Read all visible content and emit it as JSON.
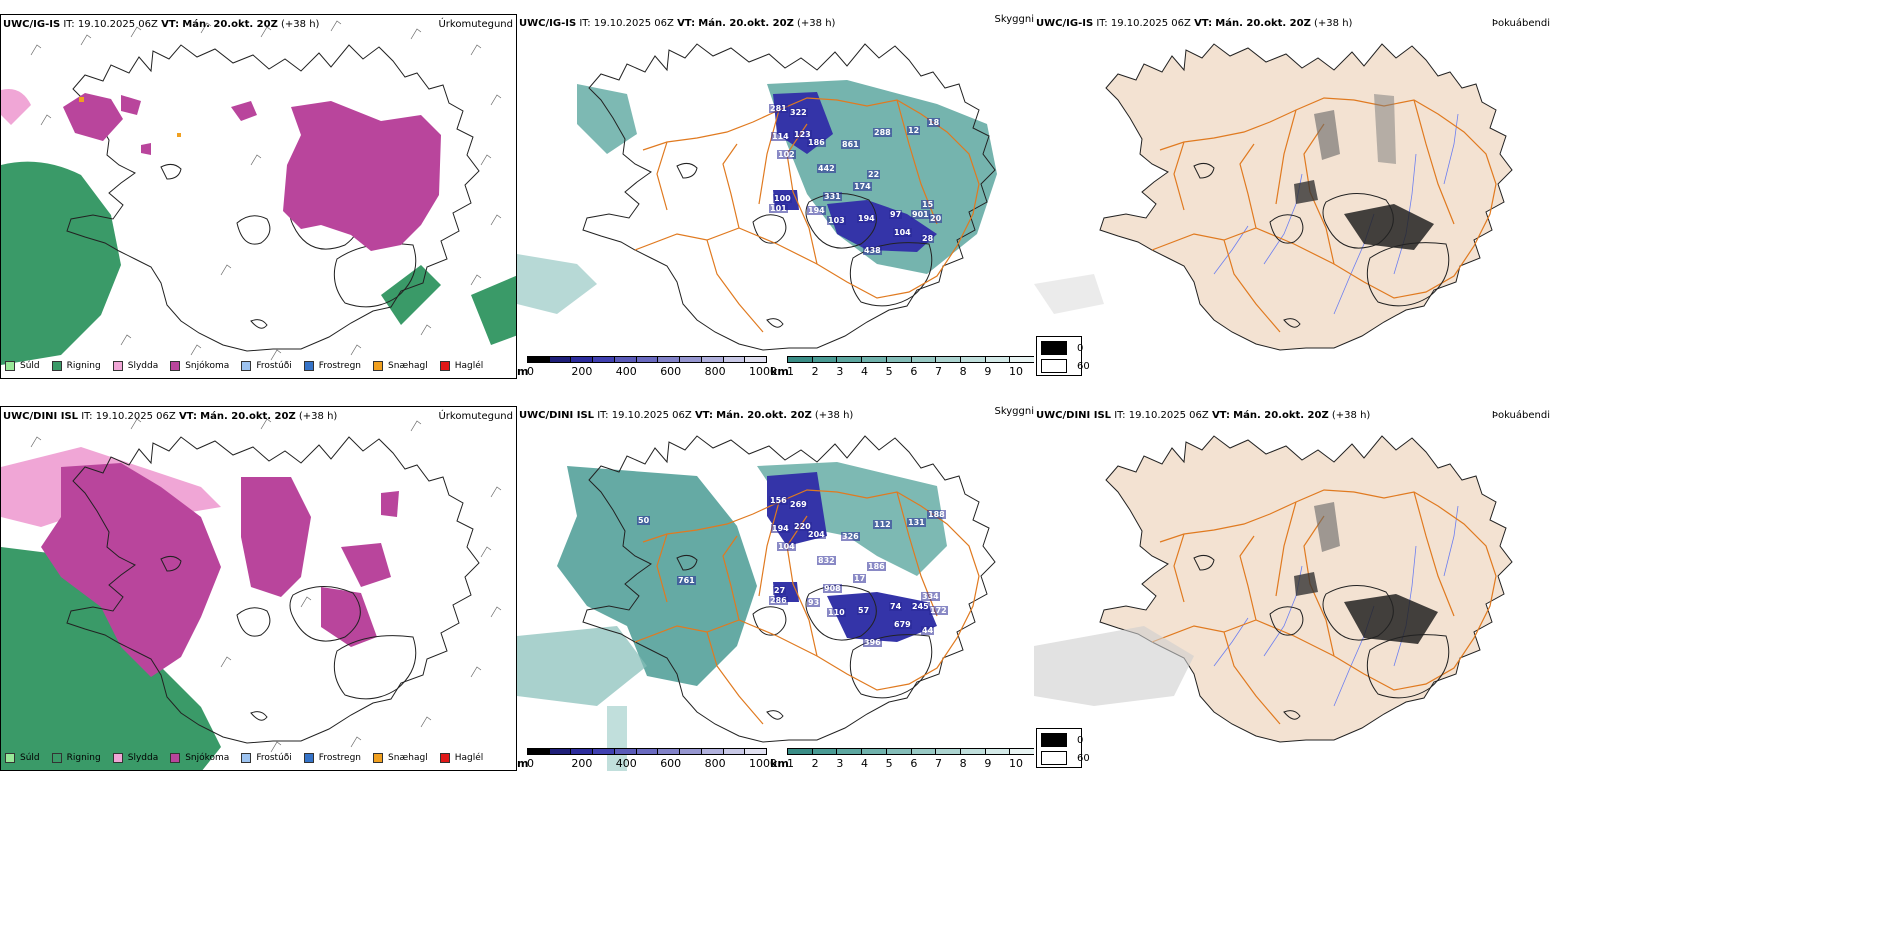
{
  "rows": [
    {
      "model": "UWC/IG-IS",
      "it_label": "IT:",
      "it_value": "19.10.2025 06Z",
      "vt_label": "VT:",
      "vt_value": "Mán. 20.okt. 20Z",
      "lead": "(+38 h)",
      "precip_labels": [
        "281",
        "322",
        "114",
        "123",
        "102",
        "186",
        "861",
        "442",
        "288",
        "12",
        "18",
        "22",
        "174",
        "331",
        "100",
        "101",
        "194",
        "103",
        "194",
        "97",
        "901",
        "104",
        "438",
        "15",
        "20",
        "28"
      ]
    },
    {
      "model": "UWC/DINI ISL",
      "it_label": "IT:",
      "it_value": "19.10.2025 06Z",
      "vt_label": "VT:",
      "vt_value": "Mán. 20.okt. 20Z",
      "lead": "(+38 h)",
      "precip_labels": [
        "156",
        "269",
        "194",
        "220",
        "104",
        "204",
        "326",
        "832",
        "112",
        "131",
        "188",
        "186",
        "17",
        "908",
        "27",
        "286",
        "93",
        "110",
        "57",
        "74",
        "245",
        "679",
        "396",
        "334",
        "172",
        "44",
        "50",
        "761"
      ]
    }
  ],
  "panel_titles": {
    "precip_type": "Úrkomutegund",
    "visibility": "Skyggni",
    "fog": "Þokuábendi"
  },
  "precip_legend": [
    {
      "label": "Súld",
      "color": "#98e898"
    },
    {
      "label": "Rigning",
      "color": "#3a9a68"
    },
    {
      "label": "Slydda",
      "color": "#f0a6d6"
    },
    {
      "label": "Snjókoma",
      "color": "#b9459c"
    },
    {
      "label": "Frostúði",
      "color": "#9dc3f0"
    },
    {
      "label": "Frostregn",
      "color": "#3573c8"
    },
    {
      "label": "Snæhagl",
      "color": "#f0a020"
    },
    {
      "label": "Haglél",
      "color": "#e01818"
    }
  ],
  "ceiling_bar": {
    "unit": "m",
    "ticks": [
      "0",
      "200",
      "400",
      "600",
      "800",
      "1000"
    ],
    "colors": [
      "#000000",
      "#1e1e78",
      "#2c2c9c",
      "#4040b0",
      "#5a5ab8",
      "#6a6ac0",
      "#8282c8",
      "#9696d0",
      "#b0b0dc",
      "#c8c8e6",
      "#e0e0f0"
    ]
  },
  "visibility_bar": {
    "unit": "km",
    "ticks": [
      "1",
      "2",
      "3",
      "4",
      "5",
      "6",
      "7",
      "8",
      "9",
      "10"
    ],
    "colors": [
      "#3a8d86",
      "#4a9b94",
      "#5da7a0",
      "#70b2ac",
      "#84bdb8",
      "#98c9c4",
      "#acd4d0",
      "#c0dfdc",
      "#d4eae8",
      "#e8f4f3"
    ]
  },
  "fog_legend": [
    {
      "label": "0",
      "color": "#000000"
    },
    {
      "label": "60",
      "color": "#ffffff"
    }
  ]
}
